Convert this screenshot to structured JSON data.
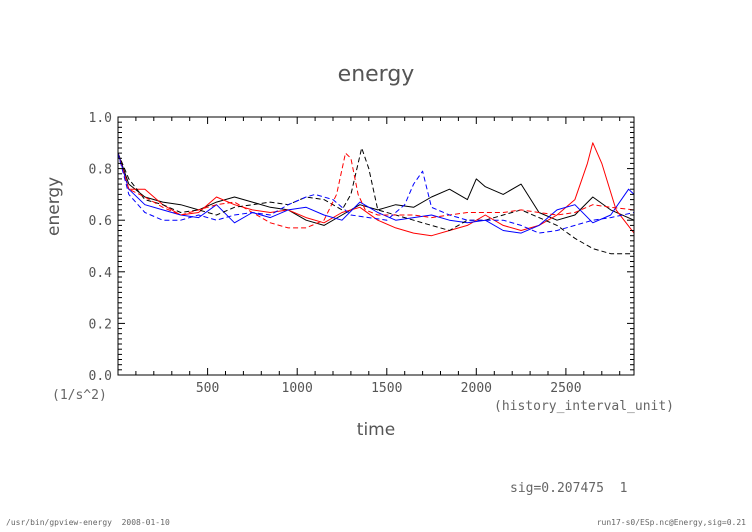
{
  "chart_data": {
    "type": "line",
    "title": "energy",
    "xlabel": "time",
    "xunits": "(history_interval_unit)",
    "ylabel": "energy",
    "yunits": "(1/s^2)",
    "xlim": [
      0,
      2880
    ],
    "ylim": [
      0.0,
      1.0
    ],
    "xticks": [
      500,
      1000,
      1500,
      2000,
      2500
    ],
    "xtick_labels": [
      "500",
      "1000",
      "1500",
      "2000",
      "2500"
    ],
    "yticks": [
      0.0,
      0.2,
      0.4,
      0.6,
      0.8,
      1.0
    ],
    "ytick_labels": [
      "0.0",
      "0.2",
      "0.4",
      "0.6",
      "0.8",
      "1.0"
    ],
    "grid": false,
    "series": [
      {
        "name": "black solid",
        "color": "#000000",
        "dash": "none",
        "x": [
          0,
          60,
          150,
          250,
          350,
          450,
          550,
          650,
          750,
          850,
          950,
          1050,
          1150,
          1250,
          1350,
          1450,
          1550,
          1650,
          1750,
          1850,
          1950,
          2000,
          2050,
          2150,
          2250,
          2350,
          2450,
          2550,
          2650,
          2750,
          2880
        ],
        "y": [
          0.86,
          0.74,
          0.69,
          0.67,
          0.66,
          0.64,
          0.67,
          0.69,
          0.67,
          0.65,
          0.64,
          0.6,
          0.58,
          0.62,
          0.66,
          0.64,
          0.66,
          0.65,
          0.69,
          0.72,
          0.68,
          0.76,
          0.73,
          0.7,
          0.74,
          0.63,
          0.6,
          0.62,
          0.69,
          0.64,
          0.6
        ]
      },
      {
        "name": "red solid",
        "color": "#ff0000",
        "dash": "none",
        "x": [
          0,
          60,
          150,
          250,
          350,
          450,
          550,
          650,
          750,
          850,
          950,
          1050,
          1150,
          1250,
          1350,
          1450,
          1550,
          1650,
          1750,
          1850,
          1950,
          2050,
          2150,
          2250,
          2350,
          2450,
          2550,
          2620,
          2650,
          2700,
          2780,
          2880
        ],
        "y": [
          0.86,
          0.72,
          0.72,
          0.66,
          0.62,
          0.63,
          0.69,
          0.66,
          0.64,
          0.63,
          0.64,
          0.61,
          0.59,
          0.63,
          0.65,
          0.6,
          0.57,
          0.55,
          0.54,
          0.56,
          0.58,
          0.62,
          0.58,
          0.56,
          0.58,
          0.62,
          0.68,
          0.82,
          0.9,
          0.82,
          0.64,
          0.55
        ]
      },
      {
        "name": "blue solid",
        "color": "#0000ff",
        "dash": "none",
        "x": [
          0,
          60,
          150,
          250,
          350,
          450,
          550,
          650,
          750,
          850,
          950,
          1050,
          1150,
          1250,
          1350,
          1450,
          1550,
          1650,
          1750,
          1850,
          1950,
          2050,
          2150,
          2250,
          2350,
          2450,
          2550,
          2650,
          2750,
          2850,
          2880
        ],
        "y": [
          0.86,
          0.72,
          0.66,
          0.64,
          0.62,
          0.61,
          0.66,
          0.59,
          0.63,
          0.61,
          0.64,
          0.65,
          0.62,
          0.6,
          0.67,
          0.63,
          0.6,
          0.61,
          0.62,
          0.6,
          0.59,
          0.6,
          0.56,
          0.55,
          0.58,
          0.64,
          0.66,
          0.59,
          0.62,
          0.72,
          0.7
        ]
      },
      {
        "name": "black dashed",
        "color": "#000000",
        "dash": "5,3",
        "x": [
          0,
          60,
          150,
          250,
          350,
          450,
          550,
          650,
          750,
          850,
          950,
          1050,
          1150,
          1250,
          1300,
          1360,
          1400,
          1450,
          1550,
          1650,
          1750,
          1850,
          1950,
          2050,
          2150,
          2250,
          2350,
          2450,
          2550,
          2650,
          2750,
          2880
        ],
        "y": [
          0.86,
          0.76,
          0.68,
          0.66,
          0.63,
          0.64,
          0.62,
          0.65,
          0.66,
          0.67,
          0.66,
          0.69,
          0.68,
          0.64,
          0.7,
          0.88,
          0.8,
          0.64,
          0.62,
          0.6,
          0.58,
          0.56,
          0.6,
          0.6,
          0.62,
          0.64,
          0.61,
          0.58,
          0.53,
          0.49,
          0.47,
          0.47
        ]
      },
      {
        "name": "red dashed",
        "color": "#ff0000",
        "dash": "5,3",
        "x": [
          0,
          60,
          150,
          250,
          350,
          450,
          550,
          650,
          750,
          850,
          950,
          1050,
          1150,
          1220,
          1270,
          1300,
          1340,
          1380,
          1450,
          1550,
          1650,
          1750,
          1850,
          1950,
          2050,
          2150,
          2250,
          2350,
          2450,
          2550,
          2650,
          2750,
          2880
        ],
        "y": [
          0.86,
          0.72,
          0.69,
          0.65,
          0.62,
          0.64,
          0.66,
          0.67,
          0.63,
          0.59,
          0.57,
          0.57,
          0.6,
          0.7,
          0.86,
          0.84,
          0.7,
          0.64,
          0.62,
          0.62,
          0.62,
          0.61,
          0.62,
          0.63,
          0.63,
          0.63,
          0.64,
          0.63,
          0.62,
          0.63,
          0.66,
          0.65,
          0.64
        ]
      },
      {
        "name": "blue dashed",
        "color": "#0000ff",
        "dash": "5,3",
        "x": [
          0,
          60,
          150,
          250,
          350,
          450,
          550,
          650,
          750,
          850,
          950,
          1050,
          1100,
          1200,
          1300,
          1400,
          1500,
          1600,
          1650,
          1700,
          1750,
          1850,
          1950,
          2050,
          2150,
          2250,
          2350,
          2450,
          2550,
          2650,
          2750,
          2880
        ],
        "y": [
          0.86,
          0.7,
          0.63,
          0.6,
          0.6,
          0.62,
          0.6,
          0.62,
          0.63,
          0.62,
          0.66,
          0.69,
          0.7,
          0.68,
          0.62,
          0.61,
          0.6,
          0.66,
          0.74,
          0.79,
          0.65,
          0.62,
          0.6,
          0.6,
          0.6,
          0.58,
          0.55,
          0.56,
          0.58,
          0.6,
          0.61,
          0.63
        ]
      }
    ]
  },
  "labels": {
    "sig": "sig=0.207475  1",
    "footer_left": "/usr/bin/gpview-energy  2008-01-10",
    "footer_right": "run17-s0/ESp.nc@Energy,sig=0.21"
  }
}
